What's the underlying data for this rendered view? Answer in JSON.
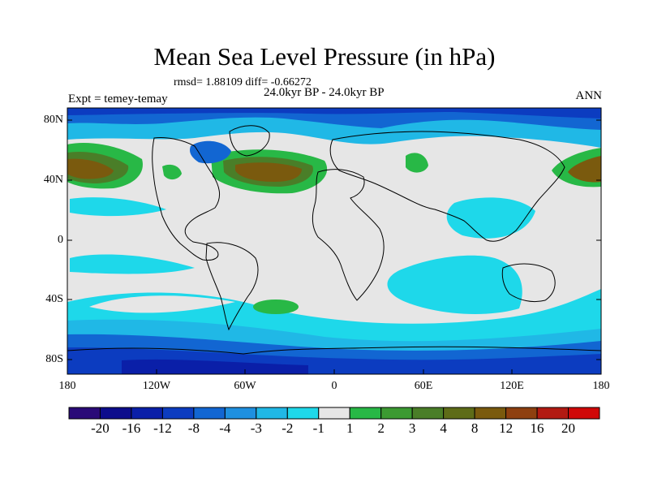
{
  "title": "Mean Sea Level Pressure (in hPa)",
  "stats": "rmsd= 1.88109 diff= -0.66272",
  "period": "24.0kyr BP - 24.0kyr BP",
  "experiment": "Expt = temey-temay",
  "season": "ANN",
  "axes": {
    "lat_labels": [
      "80N",
      "40N",
      "0",
      "40S",
      "80S"
    ],
    "lon_labels": [
      "180",
      "120W",
      "60W",
      "0",
      "60E",
      "120E",
      "180"
    ]
  },
  "colorbar": {
    "colors": [
      "#2a0a78",
      "#0d0d8c",
      "#0a1fa8",
      "#0c3cc0",
      "#1266d2",
      "#1e90e0",
      "#20b8e6",
      "#1ed8ea",
      "#e6e6e6",
      "#28b846",
      "#3c9a32",
      "#4a7e28",
      "#5e6c18",
      "#7a5a0e",
      "#8e4010",
      "#b21a12",
      "#d00808"
    ],
    "labels": [
      "-20",
      "-16",
      "-12",
      "-8",
      "-4",
      "-3",
      "-2",
      "-1",
      "1",
      "2",
      "3",
      "4",
      "8",
      "12",
      "16",
      "20"
    ]
  },
  "colors": {
    "neutral": "#e6e6e6",
    "cyan": "#1ed8ea",
    "lightblue": "#20b8e6",
    "blue": "#1266d2",
    "darkblue": "#0c3cc0",
    "navy": "#0a1fa8",
    "green": "#28b846",
    "olive": "#5e6c18",
    "brown": "#7a5a0e"
  }
}
